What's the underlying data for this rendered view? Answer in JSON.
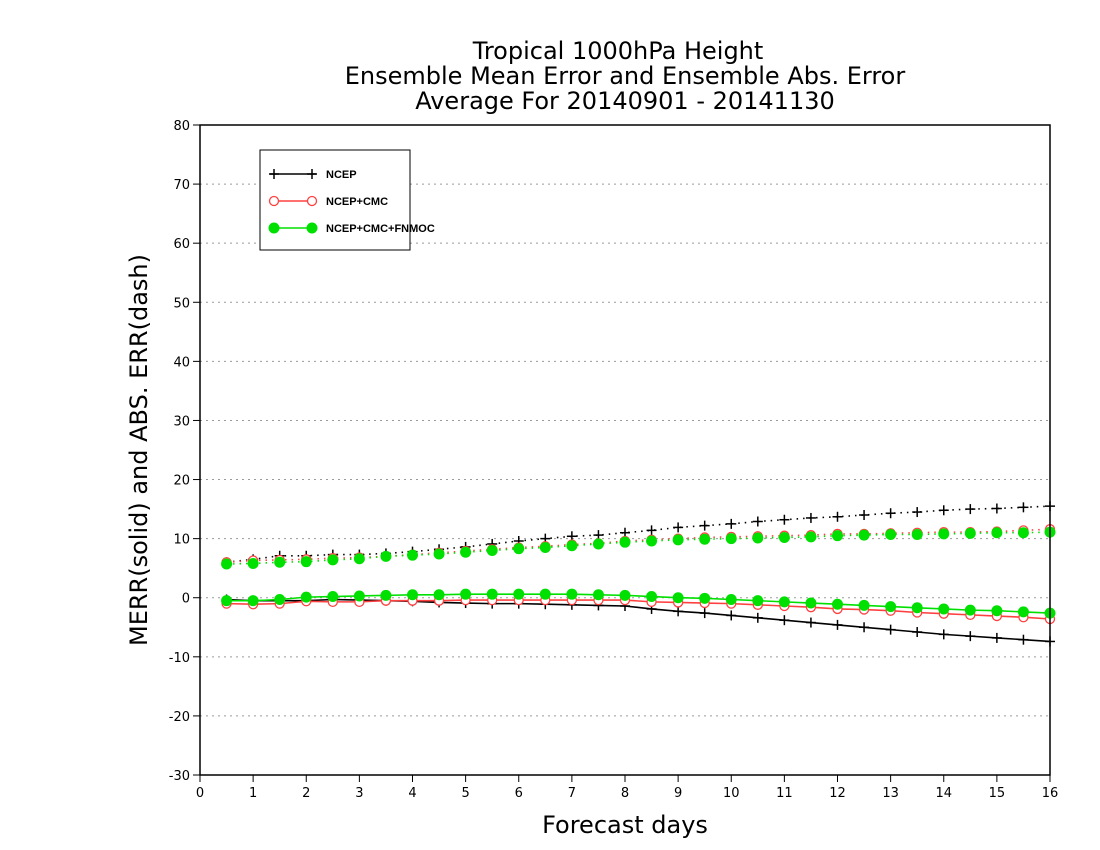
{
  "chart_data": {
    "type": "line",
    "title_lines": [
      "Tropical 1000hPa Height",
      "Ensemble Mean Error and Ensemble Abs. Error",
      "Average For 20140901 - 20141130"
    ],
    "xlabel": "Forecast days",
    "ylabel": "MERR(solid) and ABS. ERR(dash)",
    "xlim": [
      0,
      16
    ],
    "ylim": [
      -30,
      80
    ],
    "x_ticks": [
      0,
      1,
      2,
      3,
      4,
      5,
      6,
      7,
      8,
      9,
      10,
      11,
      12,
      13,
      14,
      15,
      16
    ],
    "y_ticks": [
      -30,
      -20,
      -10,
      0,
      10,
      20,
      30,
      40,
      50,
      60,
      70,
      80
    ],
    "grid": "horizontal-dotted",
    "legend_position": "top-left",
    "x": [
      0.5,
      1.0,
      1.5,
      2.0,
      2.5,
      3.0,
      3.5,
      4.0,
      4.5,
      5.0,
      5.5,
      6.0,
      6.5,
      7.0,
      7.5,
      8.0,
      8.5,
      9.0,
      9.5,
      10.0,
      10.5,
      11.0,
      11.5,
      12.0,
      12.5,
      13.0,
      13.5,
      14.0,
      14.5,
      15.0,
      15.5,
      16.0
    ],
    "series": [
      {
        "name": "NCEP",
        "color": "#000000",
        "marker": "plus",
        "merr": [
          -0.3,
          -0.5,
          -0.5,
          -0.5,
          -0.3,
          -0.4,
          -0.5,
          -0.6,
          -0.8,
          -0.9,
          -1.0,
          -1.0,
          -1.1,
          -1.2,
          -1.3,
          -1.4,
          -1.9,
          -2.3,
          -2.6,
          -3.0,
          -3.4,
          -3.8,
          -4.2,
          -4.6,
          -5.0,
          -5.4,
          -5.8,
          -6.2,
          -6.5,
          -6.8,
          -7.1,
          -7.4
        ],
        "abs_err": [
          6.0,
          6.5,
          7.1,
          7.1,
          7.3,
          7.3,
          7.5,
          7.8,
          8.2,
          8.6,
          9.1,
          9.6,
          10.0,
          10.4,
          10.6,
          11.0,
          11.4,
          11.9,
          12.2,
          12.5,
          12.9,
          13.2,
          13.5,
          13.7,
          14.0,
          14.3,
          14.5,
          14.8,
          15.0,
          15.1,
          15.3,
          15.5
        ]
      },
      {
        "name": "NCEP+CMC",
        "color": "#ff4040",
        "marker": "open-circle",
        "merr": [
          -1.0,
          -1.1,
          -1.0,
          -0.6,
          -0.7,
          -0.7,
          -0.5,
          -0.5,
          -0.5,
          -0.4,
          -0.4,
          -0.4,
          -0.4,
          -0.4,
          -0.4,
          -0.4,
          -0.7,
          -0.8,
          -0.9,
          -1.0,
          -1.2,
          -1.4,
          -1.6,
          -1.9,
          -2.0,
          -2.2,
          -2.5,
          -2.7,
          -2.9,
          -3.1,
          -3.3,
          -3.6
        ],
        "abs_err": [
          6.0,
          6.3,
          6.4,
          6.5,
          6.7,
          6.8,
          7.0,
          7.3,
          7.6,
          7.9,
          8.2,
          8.5,
          8.7,
          9.0,
          9.2,
          9.6,
          9.8,
          10.0,
          10.2,
          10.3,
          10.4,
          10.5,
          10.6,
          10.8,
          10.8,
          10.9,
          11.0,
          11.1,
          11.1,
          11.2,
          11.4,
          11.6
        ]
      },
      {
        "name": "NCEP+CMC+FNMOC",
        "color": "#00e000",
        "marker": "filled-circle",
        "merr": [
          -0.5,
          -0.5,
          -0.3,
          0.1,
          0.2,
          0.3,
          0.4,
          0.5,
          0.5,
          0.6,
          0.6,
          0.6,
          0.6,
          0.6,
          0.5,
          0.4,
          0.2,
          0.0,
          -0.1,
          -0.3,
          -0.5,
          -0.7,
          -0.9,
          -1.1,
          -1.3,
          -1.5,
          -1.7,
          -1.9,
          -2.1,
          -2.2,
          -2.4,
          -2.6
        ],
        "abs_err": [
          5.7,
          5.8,
          6.0,
          6.1,
          6.4,
          6.6,
          7.0,
          7.2,
          7.4,
          7.7,
          8.0,
          8.3,
          8.5,
          8.8,
          9.1,
          9.4,
          9.6,
          9.8,
          9.9,
          10.0,
          10.1,
          10.2,
          10.3,
          10.5,
          10.6,
          10.7,
          10.7,
          10.8,
          10.9,
          11.0,
          11.0,
          11.1
        ]
      }
    ]
  }
}
